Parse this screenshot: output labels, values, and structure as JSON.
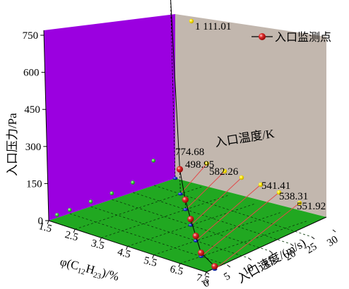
{
  "chart_data": {
    "type": "scatter3d",
    "legend": {
      "label": "入口监测点",
      "position": "top-right"
    },
    "z_axis": {
      "label": "入口压力/Pa",
      "ticks": [
        "0",
        "150",
        "300",
        "450",
        "600",
        "750"
      ],
      "range": [
        0,
        750
      ]
    },
    "x_axis": {
      "label": "φ(C12H23)/%",
      "label_parts": [
        "φ(C",
        "12",
        "H",
        "23",
        ")/%"
      ],
      "ticks": [
        "1.5",
        "2.5",
        "3.5",
        "4.5",
        "5.5",
        "6.5",
        "7.5"
      ]
    },
    "y_axis": {
      "label": "入口速度/(m/s)",
      "ticks": [
        "0",
        "5",
        "10",
        "15",
        "20",
        "25",
        "30"
      ],
      "range": [
        0,
        30
      ]
    },
    "temperature_axis": {
      "label": "入口温度/K"
    },
    "annotations": [
      "1 111.01",
      "774.68",
      "498.95",
      "582.26",
      "541.41",
      "538.31",
      "551.92"
    ],
    "points": [
      {
        "phi": 1.5,
        "velocity": 30,
        "pressure": 740,
        "temperature": 1111.01
      },
      {
        "phi": 2.5,
        "velocity": 25,
        "pressure": 100,
        "temperature": 774.68
      },
      {
        "phi": 3.5,
        "velocity": 20,
        "pressure": 40,
        "temperature": 498.95
      },
      {
        "phi": 4.5,
        "velocity": 15,
        "pressure": 25,
        "temperature": 582.26
      },
      {
        "phi": 5.5,
        "velocity": 10,
        "pressure": 20,
        "temperature": 541.41
      },
      {
        "phi": 6.5,
        "velocity": 5,
        "pressure": 15,
        "temperature": 538.31
      },
      {
        "phi": 7.5,
        "velocity": 2,
        "pressure": 12,
        "temperature": 551.92
      }
    ],
    "colors": {
      "left_wall": "#9b00e0",
      "back_wall": "#c2b7ae",
      "floor": "#21a821",
      "series_marker": "#d81e1e",
      "projection_wall": "#45d645",
      "projection_floor": "#1a2fd6",
      "projection_temp": "#ffee00",
      "temp_line": "#e24a4a"
    }
  }
}
